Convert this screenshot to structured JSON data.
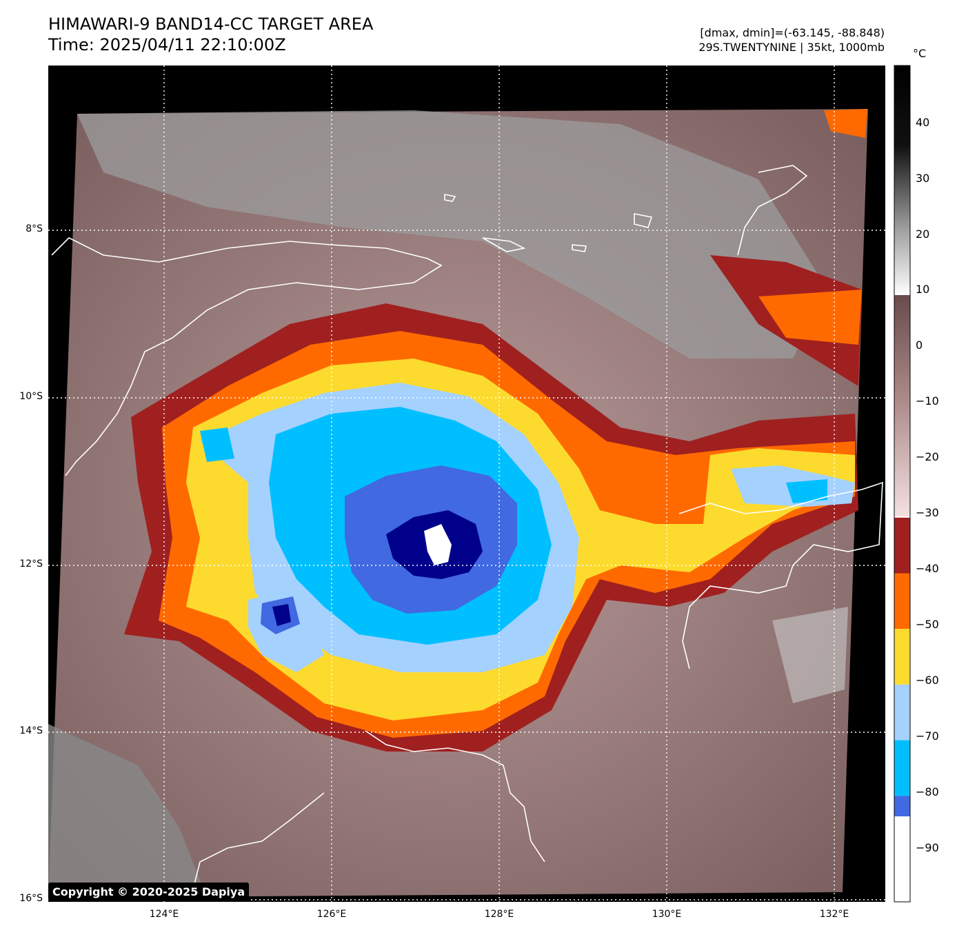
{
  "header": {
    "title_line1": "HIMAWARI-9 BAND14-CC TARGET AREA",
    "title_line2": "Time: 2025/04/11 22:10:00Z",
    "range_line": "[dmax, dmin]=(-63.145, -88.848)",
    "storm_line": "29S.TWENTYNINE | 35kt, 1000mb"
  },
  "copyright": "Copyright © 2020-2025 Dapiya",
  "axes": {
    "lat_labels": [
      "8°S",
      "10°S",
      "12°S",
      "14°S",
      "16°S"
    ],
    "lon_labels": [
      "124°E",
      "126°E",
      "128°E",
      "130°E",
      "132°E"
    ]
  },
  "colorbar": {
    "unit": "°C",
    "labels": [
      "40",
      "30",
      "20",
      "10",
      "0",
      "−10",
      "−20",
      "−30",
      "−40",
      "−50",
      "−60",
      "−70",
      "−80",
      "−90"
    ],
    "bins": [
      {
        "from": -30,
        "to": -40,
        "color": "#a02020"
      },
      {
        "from": -40,
        "to": -50,
        "color": "#ff6a00"
      },
      {
        "from": -50,
        "to": -60,
        "color": "#fddb2e"
      },
      {
        "from": -60,
        "to": -70,
        "color": "#a5d1ff"
      },
      {
        "from": -70,
        "to": -80,
        "color": "#00bfff"
      },
      {
        "from": -80,
        "to": -84,
        "color": "#4169e1"
      },
      {
        "from": -84,
        "to": -88,
        "color": "#00008b"
      }
    ]
  },
  "colors": {
    "background": "#000000",
    "cloud_warm": "#8a6a6a",
    "cloud_pink": "#d9b7b7",
    "clear_gray": "#9a9a9a",
    "coastline": "#ffffff",
    "grid": "#ffffff"
  }
}
